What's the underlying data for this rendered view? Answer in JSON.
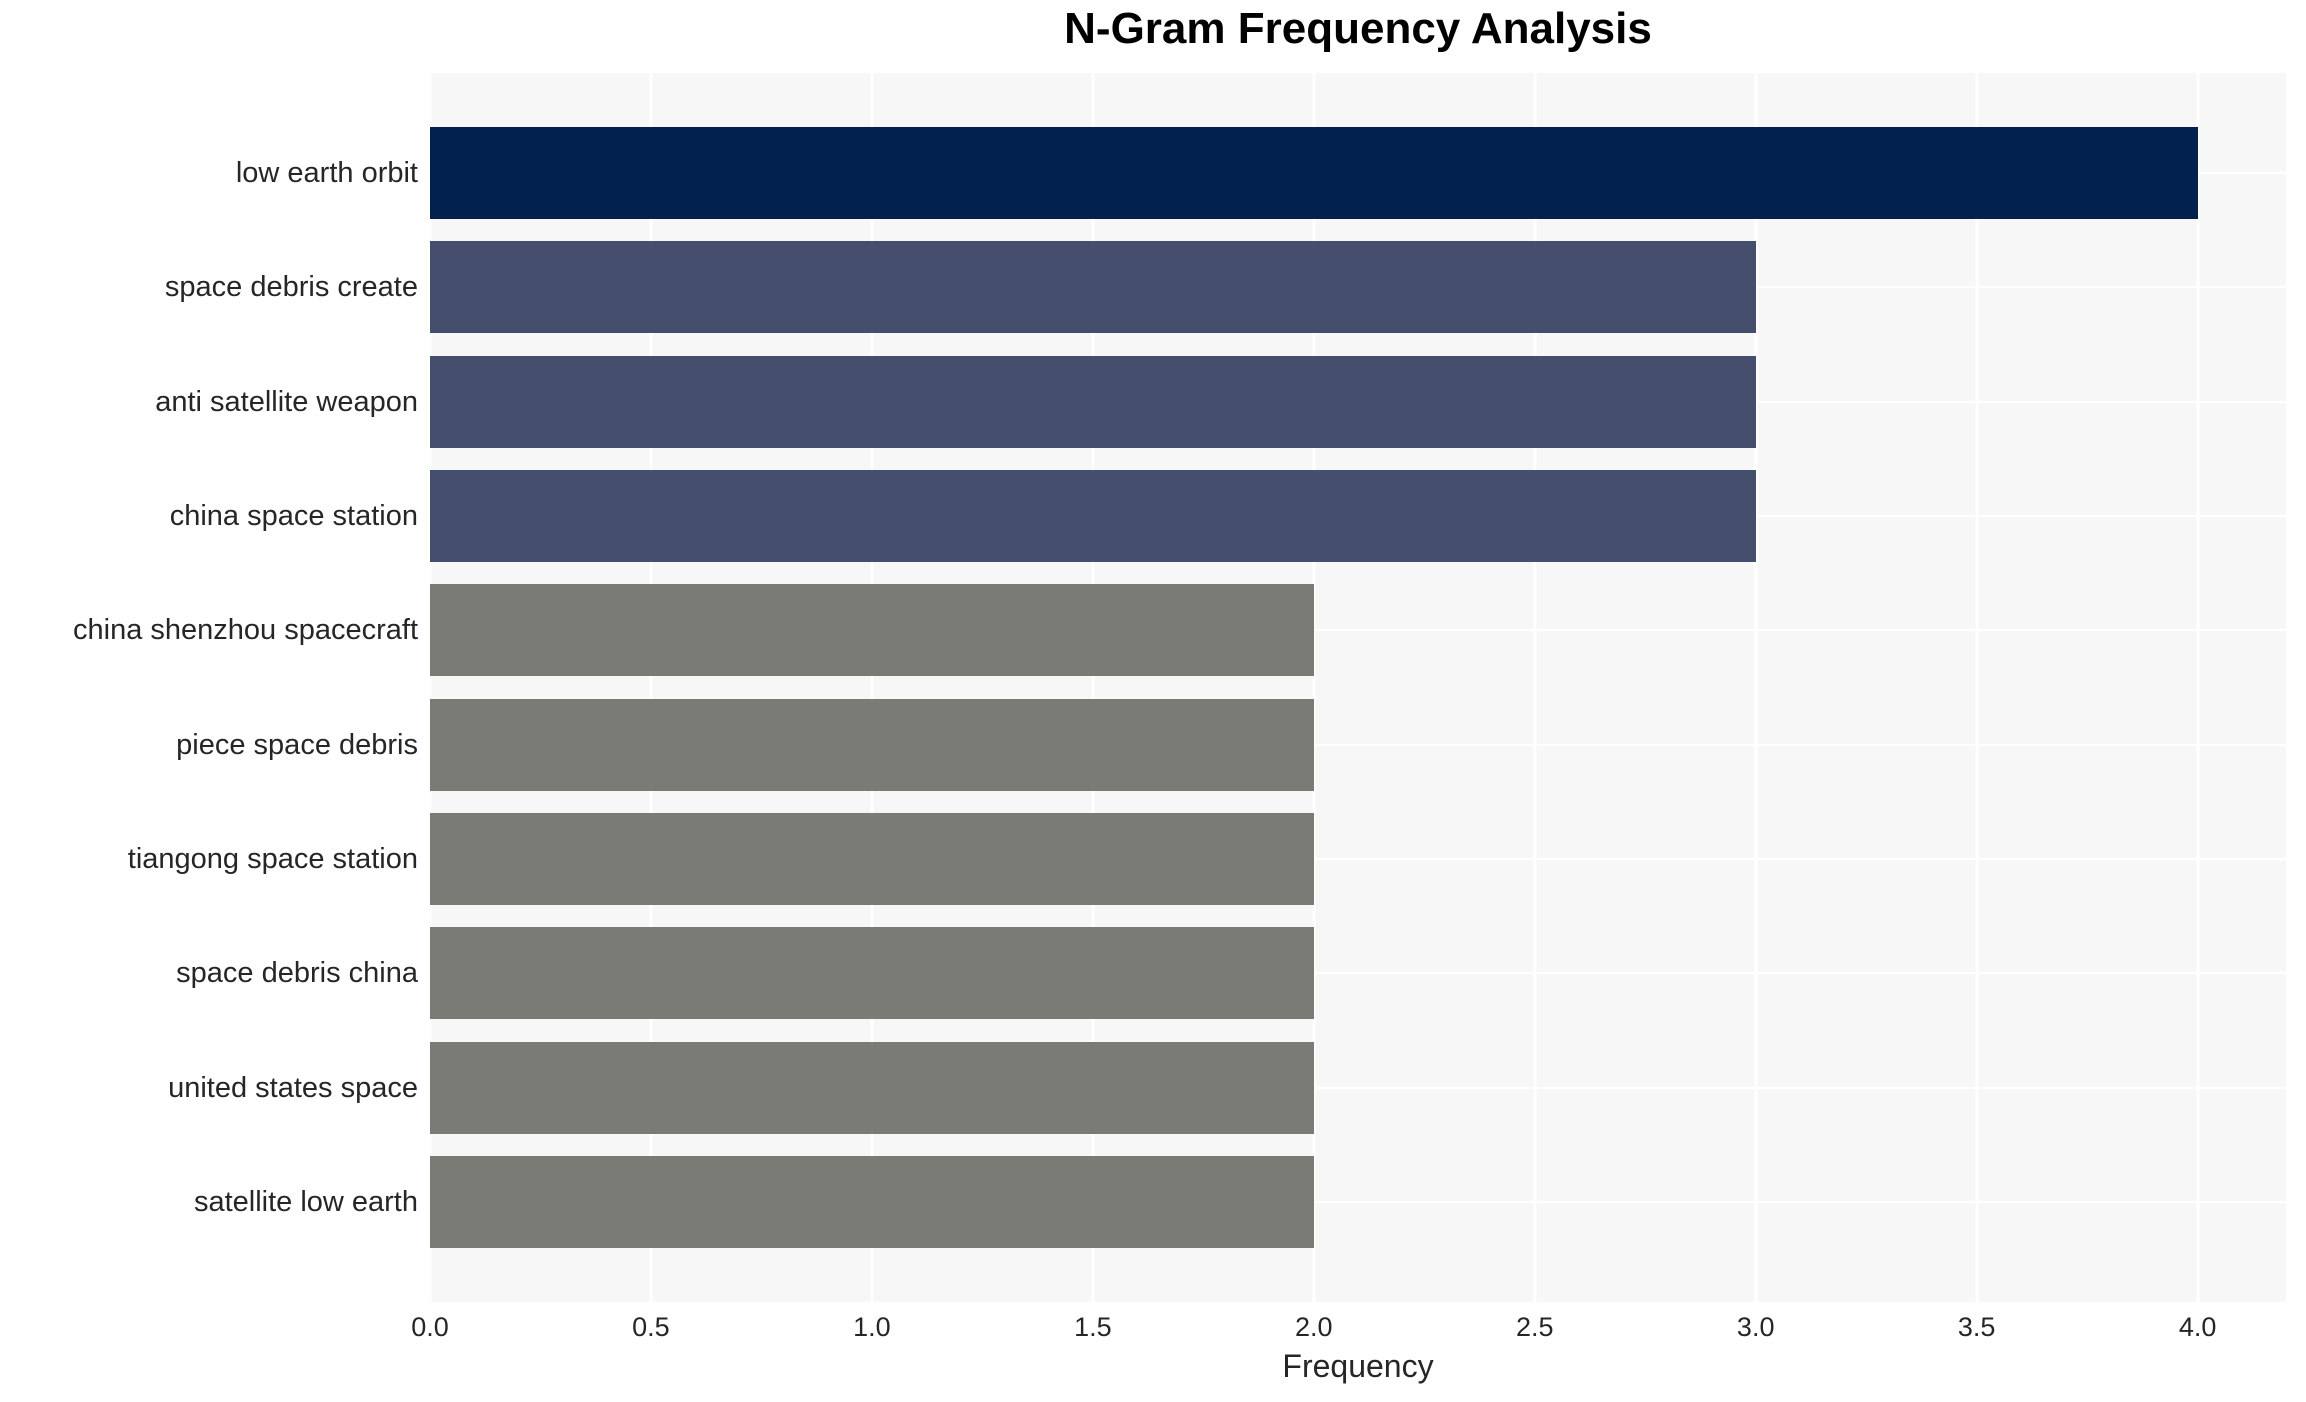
{
  "chart_data": {
    "type": "bar",
    "orientation": "horizontal",
    "title": "N-Gram Frequency Analysis",
    "xlabel": "Frequency",
    "ylabel": "",
    "categories": [
      "low earth orbit",
      "space debris create",
      "anti satellite weapon",
      "china space station",
      "china shenzhou spacecraft",
      "piece space debris",
      "tiangong space station",
      "space debris china",
      "united states space",
      "satellite low earth"
    ],
    "values": [
      4,
      3,
      3,
      3,
      2,
      2,
      2,
      2,
      2,
      2
    ],
    "xlim": [
      0,
      4.2
    ],
    "xticks": [
      0.0,
      0.5,
      1.0,
      1.5,
      2.0,
      2.5,
      3.0,
      3.5,
      4.0
    ],
    "xtick_labels": [
      "0.0",
      "0.5",
      "1.0",
      "1.5",
      "2.0",
      "2.5",
      "3.0",
      "3.5",
      "4.0"
    ],
    "grid": true,
    "legend": false,
    "bar_colors": [
      "#02224d",
      "#454f6d",
      "#454f6d",
      "#454f6d",
      "#7b7b75",
      "#7b7b75",
      "#7b7b75",
      "#7b7b75",
      "#7b7b75",
      "#7b7b75"
    ],
    "colors": {
      "plot_background": "#f7f7f7",
      "gridline": "#ffffff",
      "tick_text": "#262626",
      "title_text": "#000000"
    }
  }
}
